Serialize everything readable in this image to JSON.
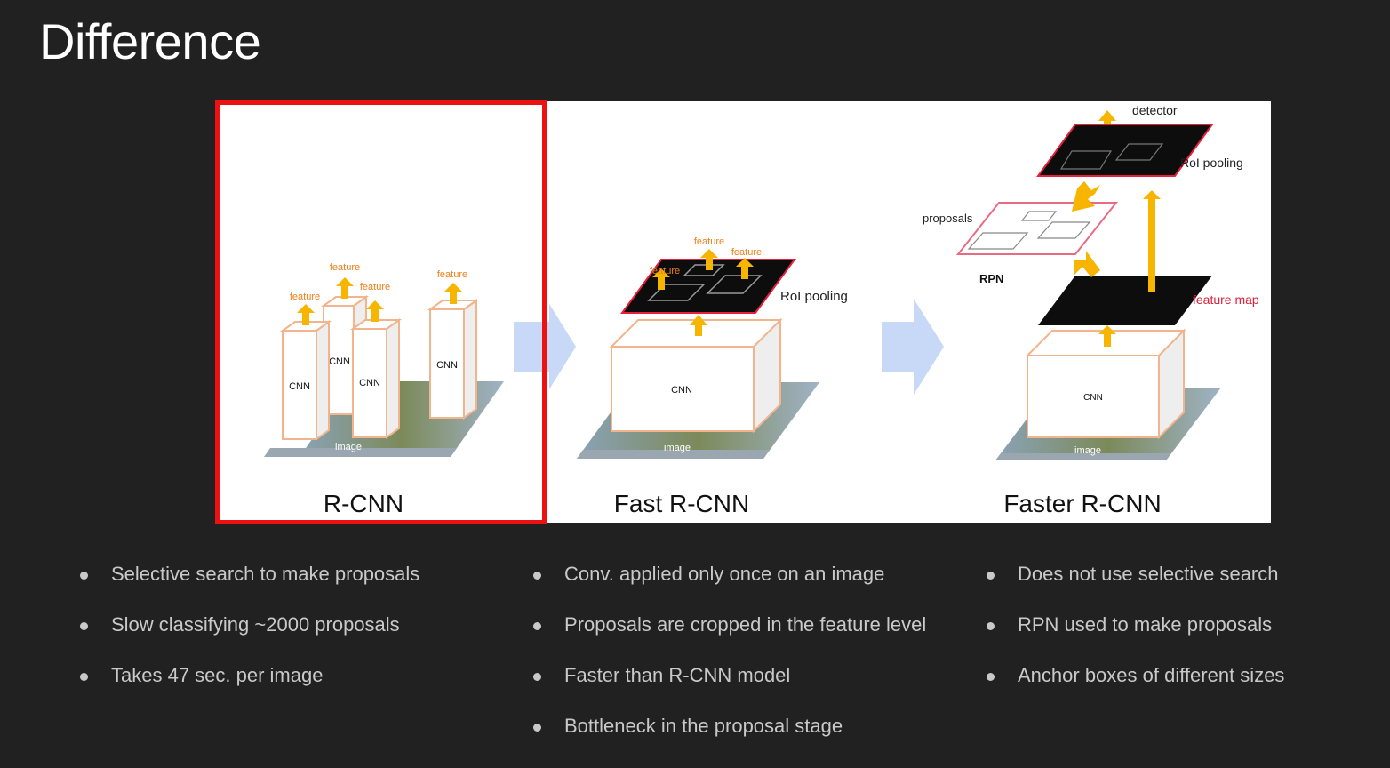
{
  "slide": {
    "title": "Difference"
  },
  "figure": {
    "panels": [
      {
        "caption": "R-CNN",
        "labels": {
          "feature": "feature",
          "cnn": "CNN",
          "image": "image"
        }
      },
      {
        "caption": "Fast R-CNN",
        "labels": {
          "feature": "feature",
          "roi_pooling": "RoI pooling",
          "cnn": "CNN",
          "image": "image"
        }
      },
      {
        "caption": "Faster R-CNN",
        "labels": {
          "detector": "detector",
          "roi_pooling": "RoI pooling",
          "proposals": "proposals",
          "rpn": "RPN",
          "feature_map": "feature map",
          "cnn": "CNN",
          "image": "image"
        }
      }
    ],
    "colors": {
      "highlight": "#ee1111",
      "arrow": "#f7b500",
      "feature_text": "#f07f1a",
      "flow_arrow": "#c7d9f6",
      "cnn_box": "#f2b48c",
      "feature_map_text": "#e0203a"
    }
  },
  "columns": [
    {
      "bullets": [
        "Selective search to make proposals",
        "Slow classifying ~2000 proposals",
        "Takes 47 sec. per image"
      ]
    },
    {
      "bullets": [
        "Conv. applied only once on an image",
        "Proposals are cropped in the feature level",
        "Faster than R-CNN model",
        "Bottleneck in the proposal stage"
      ]
    },
    {
      "bullets": [
        "Does not use selective search",
        "RPN used to make proposals",
        "Anchor boxes of different sizes"
      ]
    }
  ]
}
